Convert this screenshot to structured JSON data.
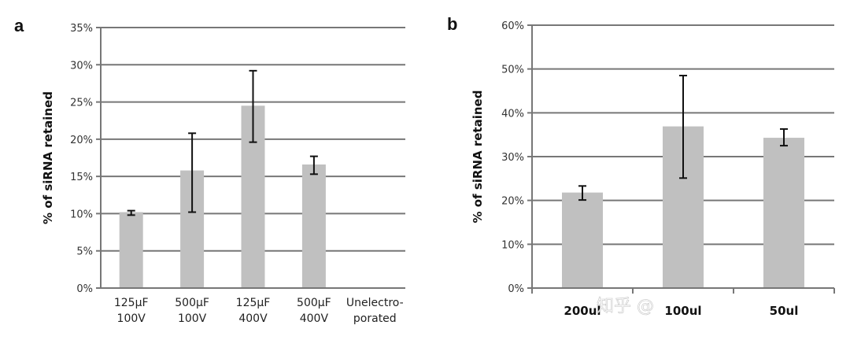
{
  "chart_data": [
    {
      "type": "bar",
      "panel_label": "a",
      "ylabel": "% of siRNA retained",
      "xlabel": "",
      "ylim": [
        0,
        35
      ],
      "yticks": [
        0,
        5,
        10,
        15,
        20,
        25,
        30,
        35
      ],
      "ytick_labels": [
        "0%",
        "5%",
        "10%",
        "15%",
        "20%",
        "25%",
        "30%",
        "35%"
      ],
      "grid": true,
      "categories": [
        [
          "125µF",
          "100V"
        ],
        [
          "500µF",
          "100V"
        ],
        [
          "125µF",
          "400V"
        ],
        [
          "500µF",
          "400V"
        ],
        [
          "Unelectro-",
          "porated"
        ]
      ],
      "values": [
        10.2,
        15.8,
        24.5,
        16.6,
        0
      ],
      "error_low": [
        9.8,
        10.2,
        19.6,
        15.3,
        null
      ],
      "error_high": [
        10.4,
        20.8,
        29.2,
        17.7,
        null
      ],
      "bar_color": "#c0c0c0"
    },
    {
      "type": "bar",
      "panel_label": "b",
      "ylabel": "% of siRNA retained",
      "xlabel": "",
      "ylim": [
        0,
        60
      ],
      "yticks": [
        0,
        10,
        20,
        30,
        40,
        50,
        60
      ],
      "ytick_labels": [
        "0%",
        "10%",
        "20%",
        "30%",
        "40%",
        "50%",
        "60%"
      ],
      "grid": true,
      "categories": [
        [
          "200ul"
        ],
        [
          "100ul"
        ],
        [
          "50ul"
        ]
      ],
      "values": [
        21.8,
        36.9,
        34.3
      ],
      "error_low": [
        20.1,
        25.1,
        32.5
      ],
      "error_high": [
        23.3,
        48.5,
        36.3
      ],
      "bar_color": "#c0c0c0"
    }
  ],
  "watermark": "知乎 @"
}
